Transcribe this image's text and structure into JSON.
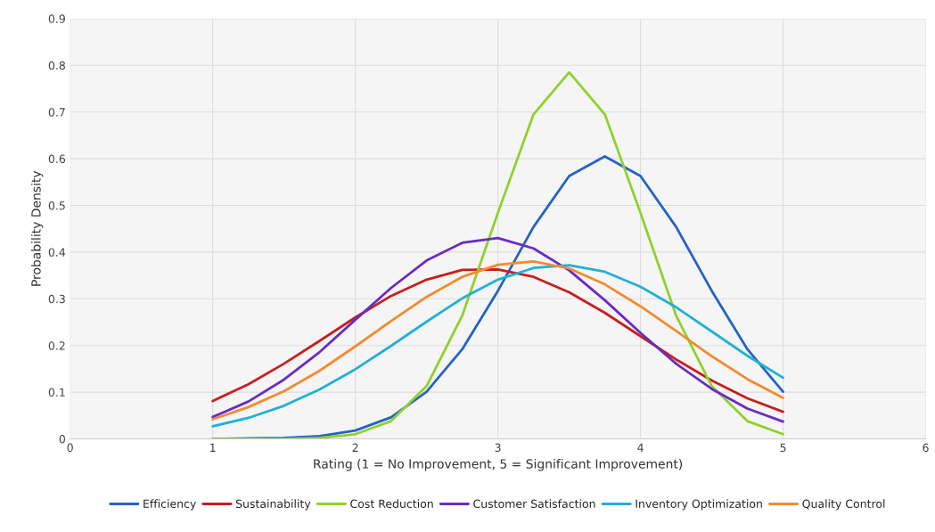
{
  "chart_data": {
    "type": "line",
    "xlabel": "Rating (1 = No Improvement, 5 = Significant Improvement)",
    "ylabel": "Probability Density",
    "x": [
      1,
      1.25,
      1.5,
      1.75,
      2,
      2.25,
      2.5,
      2.75,
      3,
      3.25,
      3.5,
      3.75,
      4,
      4.25,
      4.5,
      4.75,
      5
    ],
    "series": [
      {
        "name": "Efficiency",
        "color": "#2364c4",
        "values": [
          0.0,
          0.001,
          0.002,
          0.006,
          0.018,
          0.046,
          0.101,
          0.192,
          0.317,
          0.454,
          0.563,
          0.605,
          0.563,
          0.454,
          0.317,
          0.192,
          0.101
        ]
      },
      {
        "name": "Sustainability",
        "color": "#c81e1e",
        "values": [
          0.081,
          0.117,
          0.161,
          0.21,
          0.26,
          0.306,
          0.341,
          0.362,
          0.363,
          0.347,
          0.314,
          0.27,
          0.22,
          0.17,
          0.125,
          0.087,
          0.058
        ]
      },
      {
        "name": "Cost Reduction",
        "color": "#8fd12a",
        "values": [
          0.0,
          0.0,
          0.0,
          0.002,
          0.01,
          0.038,
          0.113,
          0.264,
          0.484,
          0.695,
          0.785,
          0.695,
          0.484,
          0.264,
          0.113,
          0.038,
          0.01
        ]
      },
      {
        "name": "Customer Satisfaction",
        "color": "#6a2bc4",
        "values": [
          0.047,
          0.08,
          0.127,
          0.186,
          0.255,
          0.323,
          0.382,
          0.42,
          0.43,
          0.408,
          0.361,
          0.297,
          0.227,
          0.161,
          0.107,
          0.065,
          0.037
        ]
      },
      {
        "name": "Inventory Optimization",
        "color": "#22b0d8",
        "values": [
          0.027,
          0.045,
          0.071,
          0.106,
          0.149,
          0.199,
          0.251,
          0.301,
          0.341,
          0.366,
          0.372,
          0.358,
          0.326,
          0.282,
          0.23,
          0.178,
          0.131
        ]
      },
      {
        "name": "Quality Control",
        "color": "#f58a30",
        "values": [
          0.042,
          0.068,
          0.102,
          0.146,
          0.198,
          0.252,
          0.304,
          0.347,
          0.373,
          0.38,
          0.365,
          0.331,
          0.284,
          0.231,
          0.177,
          0.128,
          0.088
        ]
      }
    ],
    "xlim": [
      0,
      6
    ],
    "xticks": [
      0,
      1,
      2,
      3,
      4,
      5,
      6
    ],
    "ylim": [
      0,
      0.9
    ],
    "yticks": [
      0,
      0.1,
      0.2,
      0.3,
      0.4,
      0.5,
      0.6,
      0.7,
      0.8,
      0.9
    ],
    "grid": true,
    "legend": "bottom",
    "marker": "none",
    "line_style": "solid"
  }
}
